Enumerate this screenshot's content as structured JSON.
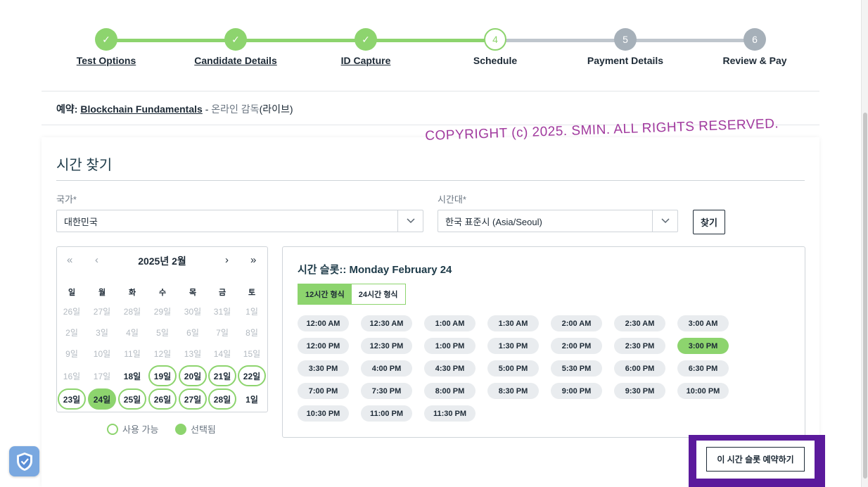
{
  "stepper": {
    "steps": [
      {
        "label": "Test Options",
        "marker": "✓",
        "state": "done"
      },
      {
        "label": "Candidate Details",
        "marker": "✓",
        "state": "done"
      },
      {
        "label": "ID Capture",
        "marker": "✓",
        "state": "done"
      },
      {
        "label": "Schedule",
        "marker": "4",
        "state": "current"
      },
      {
        "label": "Payment Details",
        "marker": "5",
        "state": "todo"
      },
      {
        "label": "Review & Pay",
        "marker": "6",
        "state": "todo"
      }
    ]
  },
  "booking": {
    "prefix": "예약:",
    "exam_name": "Blockchain Fundamentals",
    "separator": " - ",
    "mode": "온라인 감독",
    "mode_paren": "(라이브)"
  },
  "watermark": "COPYRIGHT (c) 2025. SMIN.  ALL RIGHTS RESERVED.",
  "finder": {
    "title": "시간 찾기",
    "country_label": "국가*",
    "country_value": "대한민국",
    "timezone_label": "시간대*",
    "timezone_value": "한국 표준시 (Asia/Seoul)",
    "find_label": "찾기"
  },
  "calendar": {
    "prev_year": "«",
    "prev_month": "‹",
    "month_label": "2025년 2월",
    "next_month": "›",
    "next_year": "»",
    "weekdays": [
      "일",
      "월",
      "화",
      "수",
      "목",
      "금",
      "토"
    ],
    "weeks": [
      [
        {
          "t": "26일",
          "s": "muted"
        },
        {
          "t": "27일",
          "s": "muted"
        },
        {
          "t": "28일",
          "s": "muted"
        },
        {
          "t": "29일",
          "s": "muted"
        },
        {
          "t": "30일",
          "s": "muted"
        },
        {
          "t": "31일",
          "s": "muted"
        },
        {
          "t": "1일",
          "s": "muted"
        }
      ],
      [
        {
          "t": "2일",
          "s": "muted"
        },
        {
          "t": "3일",
          "s": "muted"
        },
        {
          "t": "4일",
          "s": "muted"
        },
        {
          "t": "5일",
          "s": "muted"
        },
        {
          "t": "6일",
          "s": "muted"
        },
        {
          "t": "7일",
          "s": "muted"
        },
        {
          "t": "8일",
          "s": "muted"
        }
      ],
      [
        {
          "t": "9일",
          "s": "muted"
        },
        {
          "t": "10일",
          "s": "muted"
        },
        {
          "t": "11일",
          "s": "muted"
        },
        {
          "t": "12일",
          "s": "muted"
        },
        {
          "t": "13일",
          "s": "muted"
        },
        {
          "t": "14일",
          "s": "muted"
        },
        {
          "t": "15일",
          "s": "muted"
        }
      ],
      [
        {
          "t": "16일",
          "s": "muted"
        },
        {
          "t": "17일",
          "s": "muted"
        },
        {
          "t": "18일",
          "s": "plain"
        },
        {
          "t": "19일",
          "s": "avail"
        },
        {
          "t": "20일",
          "s": "avail"
        },
        {
          "t": "21일",
          "s": "avail"
        },
        {
          "t": "22일",
          "s": "avail"
        }
      ],
      [
        {
          "t": "23일",
          "s": "avail"
        },
        {
          "t": "24일",
          "s": "sel"
        },
        {
          "t": "25일",
          "s": "avail"
        },
        {
          "t": "26일",
          "s": "avail"
        },
        {
          "t": "27일",
          "s": "avail"
        },
        {
          "t": "28일",
          "s": "avail"
        },
        {
          "t": "1일",
          "s": "plain"
        }
      ]
    ],
    "legend_available": "사용 가능",
    "legend_selected": "선택됨"
  },
  "slots": {
    "title": "시간 슬롯:: Monday February 24",
    "format_12": "12시간 형식",
    "format_24": "24시간 형식",
    "selected": "3:00 PM",
    "times": [
      "12:00 AM",
      "12:30 AM",
      "1:00 AM",
      "1:30 AM",
      "2:00 AM",
      "2:30 AM",
      "3:00 AM",
      "12:00 PM",
      "12:30 PM",
      "1:00 PM",
      "1:30 PM",
      "2:00 PM",
      "2:30 PM",
      "3:00 PM",
      "3:30 PM",
      "4:00 PM",
      "4:30 PM",
      "5:00 PM",
      "5:30 PM",
      "6:00 PM",
      "6:30 PM",
      "7:00 PM",
      "7:30 PM",
      "8:00 PM",
      "8:30 PM",
      "9:00 PM",
      "9:30 PM",
      "10:00 PM",
      "10:30 PM",
      "11:00 PM",
      "11:30 PM"
    ]
  },
  "book_button": "이 시간 슬롯 예약하기",
  "colors": {
    "accent_green": "#8dd46e",
    "highlight_purple": "#5b1a9c",
    "watermark_magenta": "#a13a9e"
  },
  "icons": {
    "privacy_badge": "shield-check-icon"
  }
}
